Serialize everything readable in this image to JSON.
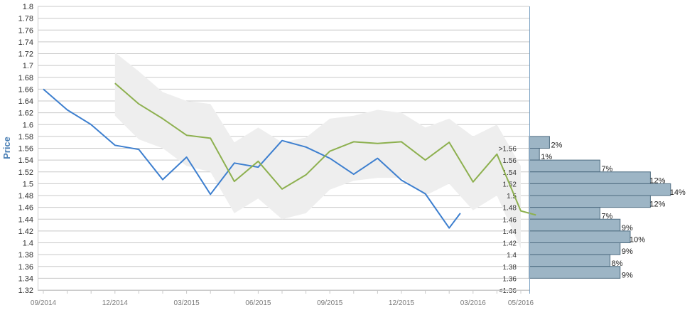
{
  "chart_data": {
    "type": "line",
    "ylabel": "Price",
    "ylim": [
      1.32,
      1.8
    ],
    "yticks": [
      "1.8",
      "1.78",
      "1.76",
      "1.74",
      "1.72",
      "1.7",
      "1.68",
      "1.66",
      "1.64",
      "1.62",
      "1.6",
      "1.58",
      "1.56",
      "1.54",
      "1.52",
      "1.5",
      "1.48",
      "1.46",
      "1.44",
      "1.42",
      "1.4",
      "1.38",
      "1.36",
      "1.34",
      "1.32"
    ],
    "xtick_labels": [
      "09/2014",
      "12/2014",
      "03/2015",
      "06/2015",
      "09/2015",
      "12/2015",
      "03/2016",
      "05/2016"
    ],
    "grid": true,
    "colors": {
      "actual": "#3d7fcf",
      "forecast": "#8db04f",
      "band": "#eeeeee",
      "dist": "#9db5c5",
      "dist_edge": "#4d6b80",
      "grid": "#c8c8c8",
      "axis": "#7fa4c4"
    },
    "series": [
      {
        "key": "actual",
        "x": [
          "2014-09",
          "2014-10",
          "2014-11",
          "2014-12",
          "2015-01",
          "2015-02",
          "2015-03",
          "2015-04",
          "2015-05",
          "2015-06",
          "2015-07",
          "2015-08",
          "2015-09",
          "2015-10",
          "2015-11",
          "2015-12",
          "2016-01",
          "2016-02",
          "2016-02-15"
        ],
        "values": [
          1.66,
          1.625,
          1.6,
          1.565,
          1.558,
          1.507,
          1.545,
          1.482,
          1.535,
          1.528,
          1.573,
          1.562,
          1.543,
          1.516,
          1.543,
          1.506,
          1.483,
          1.425,
          1.45
        ]
      },
      {
        "key": "forecast",
        "x": [
          "2014-12",
          "2015-01",
          "2015-02",
          "2015-03",
          "2015-04",
          "2015-05",
          "2015-06",
          "2015-07",
          "2015-08",
          "2015-09",
          "2015-10",
          "2015-11",
          "2015-12",
          "2016-01",
          "2016-02",
          "2016-03",
          "2016-04",
          "2016-05",
          "2016-05-20"
        ],
        "values": [
          1.67,
          1.635,
          1.61,
          1.582,
          1.577,
          1.504,
          1.538,
          1.491,
          1.515,
          1.555,
          1.571,
          1.568,
          1.571,
          1.54,
          1.57,
          1.503,
          1.55,
          1.454,
          1.447
        ]
      }
    ],
    "band": {
      "x": [
        "2014-12",
        "2015-01",
        "2015-02",
        "2015-03",
        "2015-04",
        "2015-05",
        "2015-06",
        "2015-07",
        "2015-08",
        "2015-09",
        "2015-10",
        "2015-11",
        "2015-12",
        "2016-01",
        "2016-02",
        "2016-03",
        "2016-04",
        "2016-05"
      ],
      "upper": [
        1.722,
        1.69,
        1.655,
        1.64,
        1.635,
        1.57,
        1.595,
        1.57,
        1.578,
        1.61,
        1.615,
        1.625,
        1.62,
        1.595,
        1.61,
        1.58,
        1.6,
        1.53
      ],
      "lower": [
        1.615,
        1.575,
        1.56,
        1.53,
        1.52,
        1.45,
        1.475,
        1.44,
        1.45,
        1.49,
        1.505,
        1.51,
        1.51,
        1.48,
        1.5,
        1.455,
        1.48,
        1.39
      ]
    },
    "distribution": {
      "labels": [
        ">1.56",
        "1.56",
        "1.54",
        "1.52",
        "1.5",
        "1.48",
        "1.46",
        "1.44",
        "1.42",
        "1.4",
        "1.38",
        "1.36",
        "<1.36"
      ],
      "percent_labels": [
        "2%",
        "1%",
        "7%",
        "12%",
        "14%",
        "12%",
        "7%",
        "9%",
        "10%",
        "9%",
        "8%",
        "9%"
      ],
      "percents": [
        2,
        1,
        7,
        12,
        14,
        12,
        7,
        9,
        10,
        9,
        8,
        9
      ]
    }
  }
}
